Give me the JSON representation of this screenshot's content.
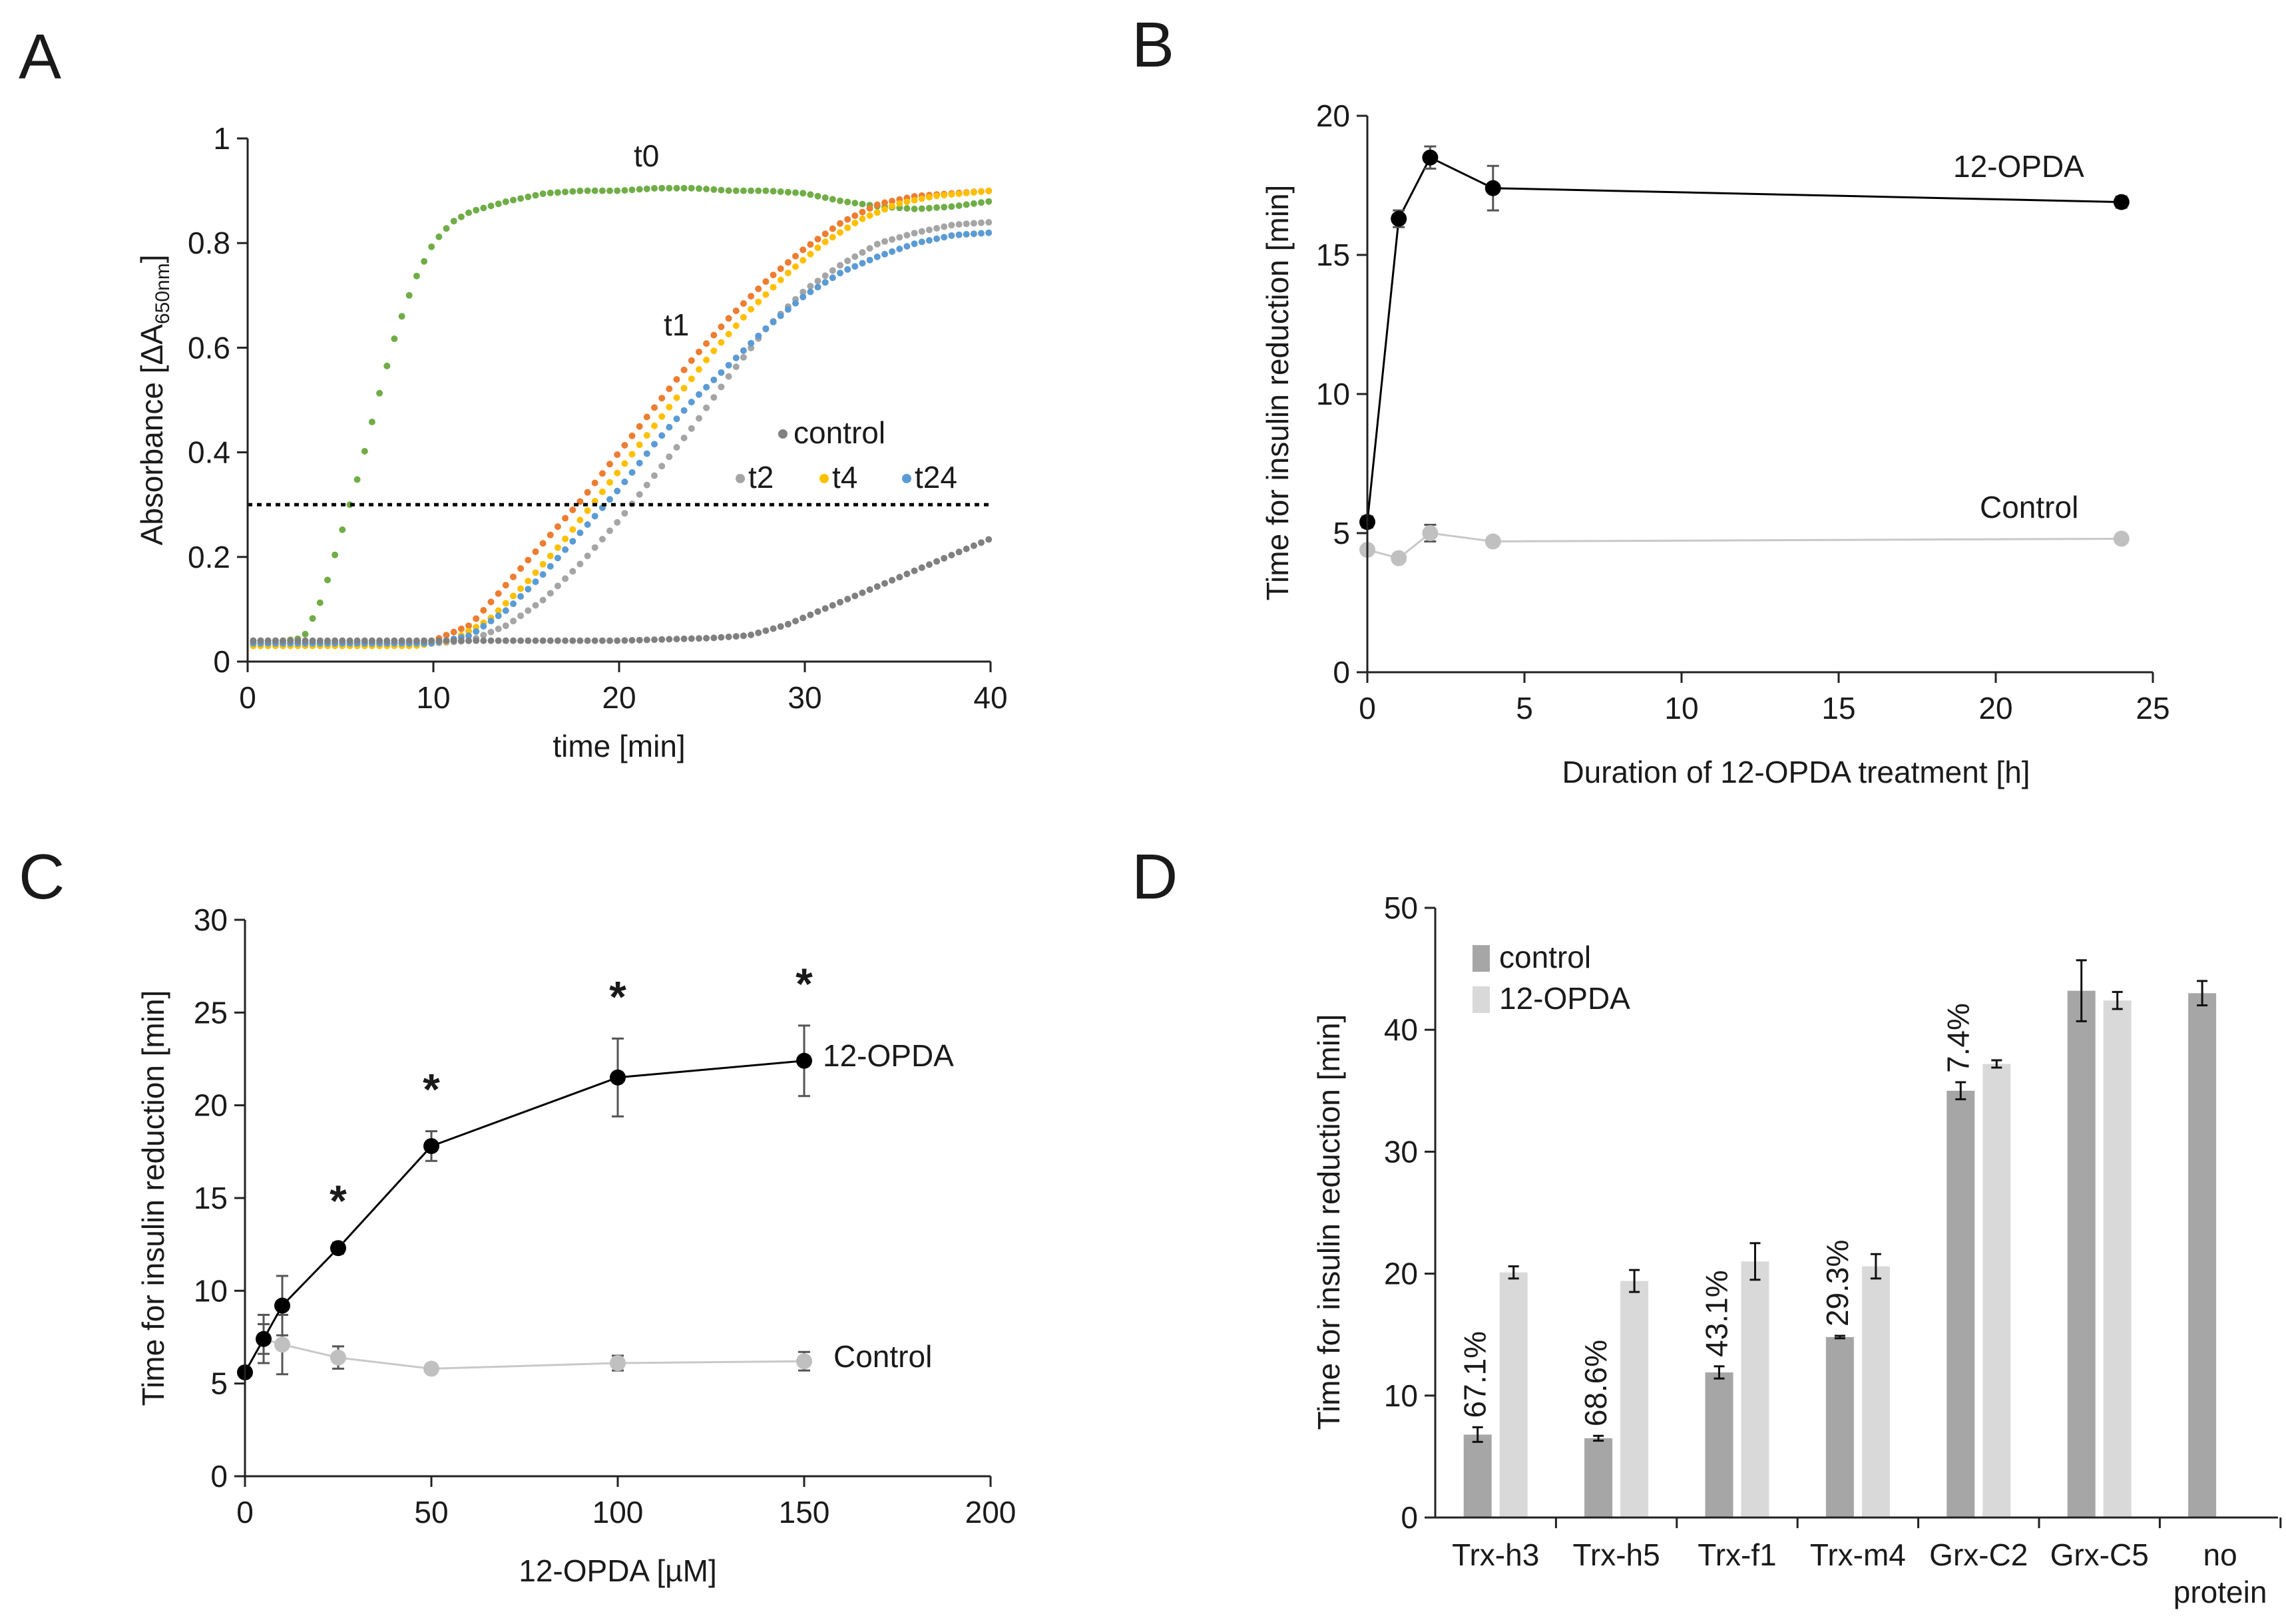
{
  "colors": {
    "t0": "#70ad47",
    "t1": "#ed7d31",
    "t2": "#a5a5a5",
    "t4": "#ffc000",
    "t24": "#5b9bd5",
    "control_curve": "#808080",
    "series_opda": "#000000",
    "series_control": "#c0c0c0",
    "bar_control": "#a6a6a6",
    "bar_opda": "#d9d9d9"
  },
  "chart_data": [
    {
      "id": "A",
      "panel_label": "A",
      "type": "line",
      "xlabel": "time [min]",
      "ylabel": "Absorbance [ΔA",
      "ylabel_sub": "650nm",
      "ylabel_end": "]",
      "xlim": [
        0,
        40
      ],
      "ylim": [
        0,
        1
      ],
      "xticks": [
        0,
        10,
        20,
        30,
        40
      ],
      "yticks": [
        0,
        0.2,
        0.4,
        0.6,
        0.8,
        1
      ],
      "ytick_labels": [
        "0",
        "0.2",
        "0.4",
        "0.6",
        "0.8",
        "1"
      ],
      "threshold": 0.3,
      "series": [
        {
          "name": "t0",
          "color_key": "t0",
          "points": [
            [
              0,
              0.04
            ],
            [
              2,
              0.04
            ],
            [
              3,
              0.045
            ],
            [
              4,
              0.12
            ],
            [
              5,
              0.24
            ],
            [
              6,
              0.36
            ],
            [
              7,
              0.5
            ],
            [
              8,
              0.63
            ],
            [
              9,
              0.73
            ],
            [
              10,
              0.8
            ],
            [
              11,
              0.84
            ],
            [
              12,
              0.86
            ],
            [
              14,
              0.88
            ],
            [
              16,
              0.895
            ],
            [
              18,
              0.9
            ],
            [
              20,
              0.9
            ],
            [
              22,
              0.905
            ],
            [
              24,
              0.905
            ],
            [
              26,
              0.9
            ],
            [
              28,
              0.9
            ],
            [
              30,
              0.895
            ],
            [
              32,
              0.88
            ],
            [
              34,
              0.87
            ],
            [
              36,
              0.865
            ],
            [
              38,
              0.87
            ],
            [
              40,
              0.88
            ]
          ]
        },
        {
          "name": "t1",
          "color_key": "t1",
          "points": [
            [
              0,
              0.035
            ],
            [
              8,
              0.035
            ],
            [
              10,
              0.04
            ],
            [
              12,
              0.07
            ],
            [
              14,
              0.15
            ],
            [
              16,
              0.23
            ],
            [
              18,
              0.31
            ],
            [
              20,
              0.4
            ],
            [
              22,
              0.49
            ],
            [
              24,
              0.58
            ],
            [
              26,
              0.66
            ],
            [
              28,
              0.73
            ],
            [
              30,
              0.79
            ],
            [
              32,
              0.84
            ],
            [
              34,
              0.875
            ],
            [
              36,
              0.89
            ],
            [
              38,
              0.895
            ],
            [
              40,
              0.9
            ]
          ]
        },
        {
          "name": "t2",
          "color_key": "t2",
          "points": [
            [
              0,
              0.035
            ],
            [
              10,
              0.035
            ],
            [
              12,
              0.04
            ],
            [
              14,
              0.07
            ],
            [
              16,
              0.12
            ],
            [
              18,
              0.19
            ],
            [
              20,
              0.27
            ],
            [
              22,
              0.36
            ],
            [
              24,
              0.45
            ],
            [
              26,
              0.55
            ],
            [
              28,
              0.64
            ],
            [
              30,
              0.71
            ],
            [
              32,
              0.76
            ],
            [
              34,
              0.8
            ],
            [
              36,
              0.82
            ],
            [
              38,
              0.835
            ],
            [
              40,
              0.84
            ]
          ]
        },
        {
          "name": "t4",
          "color_key": "t4",
          "points": [
            [
              0,
              0.03
            ],
            [
              9,
              0.03
            ],
            [
              11,
              0.04
            ],
            [
              13,
              0.08
            ],
            [
              15,
              0.15
            ],
            [
              17,
              0.23
            ],
            [
              19,
              0.32
            ],
            [
              21,
              0.41
            ],
            [
              23,
              0.5
            ],
            [
              25,
              0.59
            ],
            [
              27,
              0.67
            ],
            [
              29,
              0.74
            ],
            [
              31,
              0.8
            ],
            [
              33,
              0.845
            ],
            [
              35,
              0.875
            ],
            [
              37,
              0.89
            ],
            [
              40,
              0.9
            ]
          ]
        },
        {
          "name": "t24",
          "color_key": "t24",
          "points": [
            [
              0,
              0.035
            ],
            [
              10,
              0.035
            ],
            [
              12,
              0.05
            ],
            [
              14,
              0.1
            ],
            [
              16,
              0.17
            ],
            [
              18,
              0.25
            ],
            [
              20,
              0.33
            ],
            [
              22,
              0.42
            ],
            [
              24,
              0.5
            ],
            [
              26,
              0.57
            ],
            [
              28,
              0.64
            ],
            [
              30,
              0.7
            ],
            [
              32,
              0.745
            ],
            [
              34,
              0.775
            ],
            [
              36,
              0.8
            ],
            [
              38,
              0.815
            ],
            [
              40,
              0.82
            ]
          ]
        },
        {
          "name": "control",
          "color_key": "control_curve",
          "points": [
            [
              0,
              0.04
            ],
            [
              10,
              0.04
            ],
            [
              20,
              0.04
            ],
            [
              25,
              0.045
            ],
            [
              27,
              0.05
            ],
            [
              29,
              0.07
            ],
            [
              31,
              0.1
            ],
            [
              33,
              0.13
            ],
            [
              35,
              0.16
            ],
            [
              37,
              0.19
            ],
            [
              39,
              0.22
            ],
            [
              40,
              0.235
            ]
          ]
        }
      ],
      "labels": {
        "t0": "t0",
        "t1": "t1",
        "control": "control",
        "t2": "t2",
        "t4": "t4",
        "t24": "t24"
      }
    },
    {
      "id": "B",
      "panel_label": "B",
      "type": "line",
      "xlabel": "Duration of 12-OPDA treatment [h]",
      "ylabel": "Time for insulin reduction [min]",
      "xlim": [
        0,
        25
      ],
      "ylim": [
        0,
        20
      ],
      "xticks": [
        0,
        5,
        10,
        15,
        20,
        25
      ],
      "yticks": [
        0,
        5,
        10,
        15,
        20
      ],
      "series": [
        {
          "name": "12-OPDA",
          "color_key": "series_opda",
          "x": [
            0,
            1,
            2,
            4,
            24
          ],
          "y": [
            5.4,
            16.3,
            18.5,
            17.4,
            16.9
          ],
          "err": [
            0.2,
            0.3,
            0.4,
            0.8,
            0.2
          ]
        },
        {
          "name": "Control",
          "color_key": "series_control",
          "x": [
            0,
            1,
            2,
            4,
            24
          ],
          "y": [
            4.4,
            4.1,
            5.0,
            4.7,
            4.8
          ],
          "err": [
            0.15,
            0.15,
            0.3,
            0.15,
            0.1
          ]
        }
      ]
    },
    {
      "id": "C",
      "panel_label": "C",
      "type": "line",
      "xlabel": "12-OPDA [µM]",
      "ylabel": "Time for insulin reduction [min]",
      "xlim": [
        0,
        200
      ],
      "ylim": [
        0,
        30
      ],
      "xticks": [
        0,
        50,
        100,
        150,
        200
      ],
      "yticks": [
        0,
        5,
        10,
        15,
        20,
        25,
        30
      ],
      "significance_marker": "*",
      "significant_x": [
        25,
        50,
        100,
        150
      ],
      "series": [
        {
          "name": "12-OPDA",
          "color_key": "series_opda",
          "x": [
            0,
            5,
            10,
            25,
            50,
            100,
            150
          ],
          "y": [
            5.6,
            7.4,
            9.2,
            12.3,
            17.8,
            21.5,
            22.4
          ],
          "err": [
            0.2,
            0.8,
            1.6,
            0.3,
            0.8,
            2.1,
            1.9
          ]
        },
        {
          "name": "Control",
          "color_key": "series_control",
          "x": [
            0,
            5,
            10,
            25,
            50,
            100,
            150
          ],
          "y": [
            5.6,
            7.4,
            7.1,
            6.4,
            5.8,
            6.1,
            6.2
          ],
          "err": [
            0.2,
            1.3,
            1.6,
            0.6,
            0.2,
            0.4,
            0.5
          ]
        }
      ]
    },
    {
      "id": "D",
      "panel_label": "D",
      "type": "bar",
      "ylabel": "Time for insulin reduction [min]",
      "ylim": [
        0,
        50
      ],
      "yticks": [
        0,
        10,
        20,
        30,
        40,
        50
      ],
      "categories": [
        "Trx-h3",
        "Trx-h5",
        "Trx-f1",
        "Trx-m4",
        "Grx-C2",
        "Grx-C5",
        "no protein"
      ],
      "category_lines": [
        [
          "Trx-h3"
        ],
        [
          "Trx-h5"
        ],
        [
          "Trx-f1"
        ],
        [
          "Trx-m4"
        ],
        [
          "Grx-C2"
        ],
        [
          "Grx-C5"
        ],
        [
          "no",
          "protein"
        ]
      ],
      "series": [
        {
          "name": "control",
          "color_key": "bar_control",
          "values": [
            6.8,
            6.5,
            11.9,
            14.8,
            35.0,
            43.2,
            43.0
          ],
          "err": [
            0.6,
            0.2,
            0.5,
            0.1,
            0.7,
            2.5,
            1.0
          ]
        },
        {
          "name": "12-OPDA",
          "color_key": "bar_opda",
          "values": [
            20.1,
            19.4,
            21.0,
            20.6,
            37.2,
            42.4,
            null
          ],
          "err": [
            0.5,
            0.9,
            1.5,
            1.0,
            0.3,
            0.7,
            null
          ]
        }
      ],
      "percent_labels": [
        "67.1%",
        "68.6%",
        "43.1%",
        "29.3%",
        "7.4%",
        null,
        null
      ]
    }
  ]
}
